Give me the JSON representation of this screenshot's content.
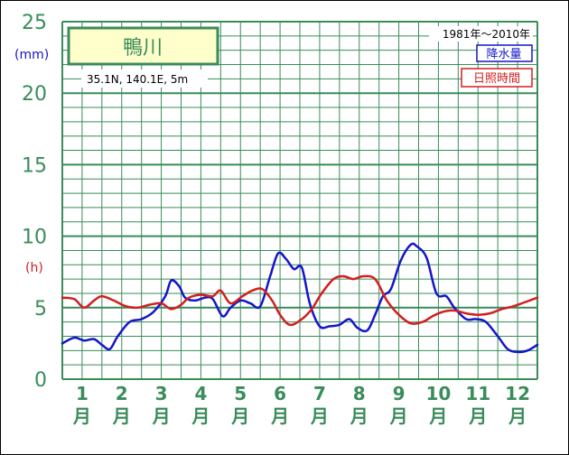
{
  "chart_data": {
    "type": "line",
    "title": "鴨川",
    "location": "35.1N,  140.1E,  5m",
    "period": "1981年〜2010年",
    "ylabel_left": "(mm)",
    "ylabel_right": "(h)",
    "yticks": [
      "0",
      "5",
      "10",
      "15",
      "20",
      "25"
    ],
    "ylim": [
      0,
      25
    ],
    "grid": true,
    "legend_position": "top-right",
    "categories": [
      "1月",
      "2月",
      "3月",
      "4月",
      "5月",
      "6月",
      "7月",
      "8月",
      "9月",
      "10月",
      "11月",
      "12月"
    ],
    "series": [
      {
        "name": "降水量",
        "color": "#1515c8",
        "x": [
          0.0,
          0.3,
          0.55,
          0.8,
          1.0,
          1.2,
          1.4,
          1.7,
          2.0,
          2.3,
          2.6,
          2.75,
          2.95,
          3.1,
          3.35,
          3.6,
          3.8,
          4.05,
          4.25,
          4.5,
          4.75,
          5.0,
          5.25,
          5.45,
          5.65,
          5.85,
          6.05,
          6.25,
          6.5,
          6.75,
          7.0,
          7.25,
          7.45,
          7.7,
          7.9,
          8.1,
          8.3,
          8.55,
          8.8,
          8.95,
          9.2,
          9.45,
          9.7,
          9.9,
          10.2,
          10.45,
          10.7,
          11.0,
          11.25,
          11.5,
          11.75,
          12.0
        ],
        "values": [
          2.5,
          2.9,
          2.7,
          2.8,
          2.4,
          2.1,
          3.0,
          4.0,
          4.2,
          4.7,
          5.8,
          6.9,
          6.5,
          5.7,
          5.5,
          5.7,
          5.6,
          4.4,
          5.0,
          5.5,
          5.3,
          5.1,
          7.2,
          8.8,
          8.4,
          7.7,
          7.8,
          5.3,
          3.7,
          3.7,
          3.8,
          4.2,
          3.6,
          3.4,
          4.5,
          5.8,
          6.3,
          8.3,
          9.4,
          9.3,
          8.5,
          6.0,
          5.8,
          5.0,
          4.2,
          4.2,
          4.0,
          3.0,
          2.1,
          1.9,
          2.0,
          2.4
        ]
      },
      {
        "name": "日照時間",
        "color": "#d21e1e",
        "x": [
          0.0,
          0.3,
          0.55,
          0.8,
          1.0,
          1.3,
          1.6,
          1.9,
          2.2,
          2.5,
          2.75,
          3.0,
          3.2,
          3.5,
          3.8,
          4.0,
          4.25,
          4.55,
          4.8,
          5.05,
          5.3,
          5.5,
          5.75,
          6.05,
          6.3,
          6.55,
          6.85,
          7.1,
          7.35,
          7.6,
          7.9,
          8.2,
          8.5,
          8.8,
          9.1,
          9.35,
          9.6,
          9.9,
          10.2,
          10.5,
          10.8,
          11.1,
          11.4,
          11.7,
          12.0
        ],
        "values": [
          5.7,
          5.6,
          5.0,
          5.5,
          5.8,
          5.5,
          5.1,
          5.0,
          5.2,
          5.3,
          4.9,
          5.2,
          5.7,
          5.9,
          5.8,
          6.2,
          5.3,
          5.8,
          6.2,
          6.3,
          5.5,
          4.5,
          3.8,
          4.2,
          4.9,
          6.0,
          7.0,
          7.2,
          7.0,
          7.2,
          7.0,
          5.5,
          4.5,
          3.9,
          4.0,
          4.4,
          4.7,
          4.8,
          4.6,
          4.5,
          4.6,
          4.9,
          5.1,
          5.4,
          5.7
        ]
      }
    ]
  }
}
